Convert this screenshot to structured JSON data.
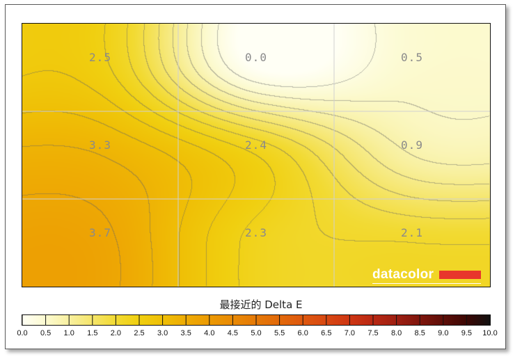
{
  "chart_data": {
    "type": "heatmap",
    "title": "最接近的 Delta E",
    "rows": 3,
    "cols": 3,
    "values": [
      [
        2.5,
        0.0,
        0.5
      ],
      [
        3.3,
        2.4,
        0.9
      ],
      [
        3.7,
        2.3,
        2.1
      ]
    ],
    "labels": [
      "2.5",
      "0.0",
      "0.5",
      "3.3",
      "2.4",
      "0.9",
      "3.7",
      "2.3",
      "2.1"
    ],
    "scale_min": 0.0,
    "scale_max": 10.0,
    "scale_ticks": [
      "0.0",
      "0.5",
      "1.0",
      "1.5",
      "2.0",
      "2.5",
      "3.0",
      "3.5",
      "4.0",
      "4.5",
      "5.0",
      "5.5",
      "6.0",
      "6.5",
      "7.0",
      "7.5",
      "8.0",
      "8.5",
      "9.0",
      "9.5",
      "10.0"
    ],
    "colormap": [
      "#fffff5",
      "#fcfad0",
      "#f8f0a0",
      "#f5e56a",
      "#f2da32",
      "#f0cf10",
      "#efbf06",
      "#eeab04",
      "#ec9a03",
      "#e98a05",
      "#e57907",
      "#e2690a",
      "#de580f",
      "#d84812",
      "#ce3613",
      "#b92813",
      "#9e1f12",
      "#7f160d",
      "#5e0e08",
      "#3c0704",
      "#111111"
    ]
  },
  "brand": {
    "name": "datacolor",
    "accent": "#e8362c"
  }
}
